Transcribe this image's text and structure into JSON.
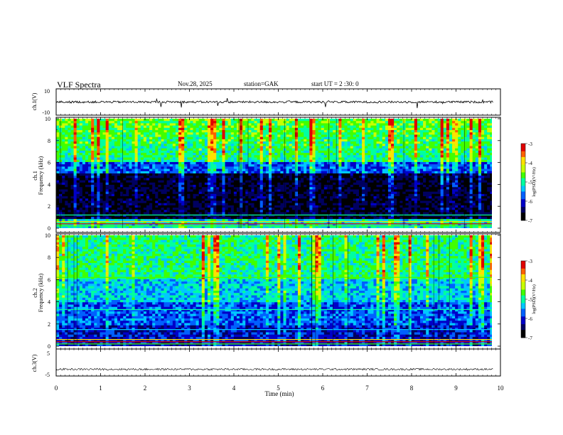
{
  "header": {
    "title": "VLF  Spectra",
    "date": "Nov.28, 2025",
    "station": "station=GAK",
    "start": "start  UT =   2 :30: 0"
  },
  "chart_data": [
    {
      "type": "line",
      "name": "ch1-waveform",
      "ylabel": "ch.1(V)",
      "ylim": [
        -10,
        10
      ],
      "yticks": [
        {
          "value": 10,
          "label": "10"
        },
        {
          "value": -10,
          "label": "-10"
        }
      ],
      "baseline": 0,
      "description_of_series": "noisy waveform near 0 V with sparse spikes"
    },
    {
      "type": "heatmap",
      "name": "ch1-spectrogram",
      "ylabel": "ch.1\nFrequency (kHz)",
      "ylim": [
        0,
        10
      ],
      "yticks": [
        0,
        2,
        4,
        6,
        8,
        10
      ],
      "colorbar": {
        "label": "log(PSD)(V²/Hz)",
        "ticks": [
          -3,
          -4,
          -5,
          -6,
          -7
        ],
        "range": [
          -7,
          -3
        ]
      }
    },
    {
      "type": "heatmap",
      "name": "ch2-spectrogram",
      "ylabel": "ch.2\nFrequency (kHz)",
      "ylim": [
        0,
        10
      ],
      "yticks": [
        0,
        2,
        4,
        6,
        8,
        10
      ],
      "colorbar": {
        "label": "log(PSD)(V²/Hz)",
        "ticks": [
          -3,
          -4,
          -5,
          -6,
          -7
        ],
        "range": [
          -7,
          -3
        ]
      }
    },
    {
      "type": "line",
      "name": "ch3-waveform",
      "ylabel": "ch.3(V)",
      "ylim": [
        -5,
        5
      ],
      "yticks": [
        {
          "value": 5,
          "label": "5"
        },
        {
          "value": -5,
          "label": "-5"
        }
      ],
      "baseline": -2.5
    }
  ],
  "xaxis": {
    "label": "Time (min)",
    "xlim": [
      0,
      10
    ],
    "ticks": [
      0,
      1,
      2,
      3,
      4,
      5,
      6,
      7,
      8,
      9,
      10
    ],
    "data_end": 9.83
  },
  "colors": {
    "cmap": [
      "#000000",
      "#000060",
      "#0000c8",
      "#0060ff",
      "#00c8ff",
      "#00ffa0",
      "#40ff00",
      "#c8ff00",
      "#ffe000",
      "#ff6000",
      "#e00000",
      "#ffffff"
    ]
  }
}
